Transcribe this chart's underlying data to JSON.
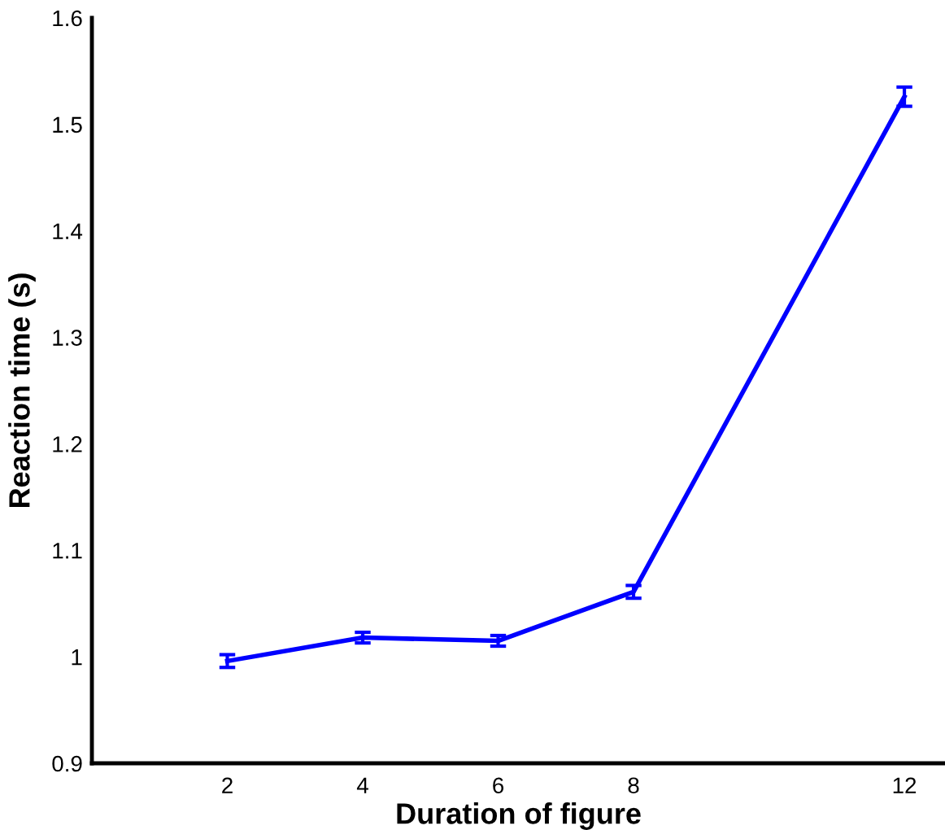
{
  "chart_data": {
    "type": "line",
    "xlabel": "Duration of figure",
    "ylabel": "Reaction time (s)",
    "x": [
      2,
      4,
      6,
      8,
      12
    ],
    "series": [
      {
        "color": "#0000ff",
        "values": [
          0.996,
          1.018,
          1.015,
          1.061,
          1.526
        ],
        "errors": [
          0.006,
          0.005,
          0.005,
          0.006,
          0.009
        ]
      }
    ],
    "xlim": [
      0,
      12.6
    ],
    "ylim": [
      0.9,
      1.6
    ],
    "xticks": [
      2,
      4,
      6,
      8,
      12
    ],
    "yticks": [
      0.9,
      1,
      1.1,
      1.2,
      1.3,
      1.4,
      1.5,
      1.6
    ],
    "grid": false,
    "marker": "none",
    "line_style": "solid"
  }
}
